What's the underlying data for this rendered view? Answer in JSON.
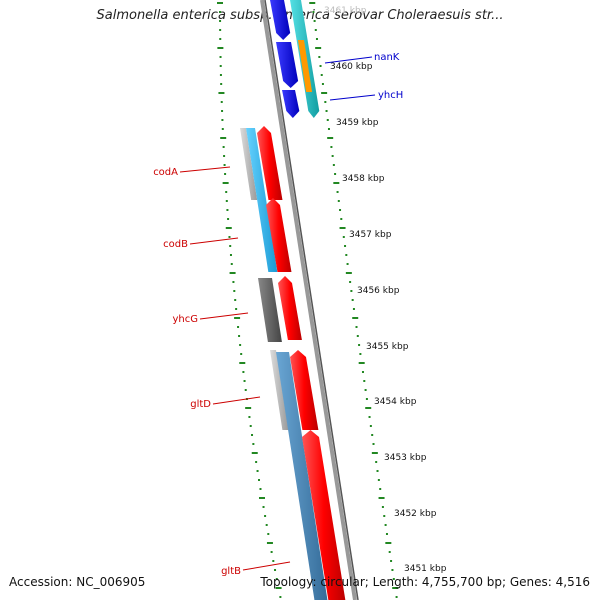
{
  "header": {
    "title": "Salmonella enterica subsp. enterica serovar Choleraesuis str..."
  },
  "footer": {
    "accession": "Accession: NC_006905",
    "topology": "Topology: circular; Length: 4,755,700 bp; Genes: 4,516"
  },
  "ticks": [
    {
      "label": "3461 kbp"
    },
    {
      "label": "3460 kbp"
    },
    {
      "label": "3459 kbp"
    },
    {
      "label": "3458 kbp"
    },
    {
      "label": "3457 kbp"
    },
    {
      "label": "3456 kbp"
    },
    {
      "label": "3455 kbp"
    },
    {
      "label": "3454 kbp"
    },
    {
      "label": "3453 kbp"
    },
    {
      "label": "3452 kbp"
    },
    {
      "label": "3451 kbp"
    }
  ],
  "genes_left": [
    {
      "name": "codA"
    },
    {
      "name": "codB"
    },
    {
      "name": "yhcG"
    },
    {
      "name": "gltD"
    },
    {
      "name": "gltB"
    }
  ],
  "genes_right": [
    {
      "name": "nanK"
    },
    {
      "name": "yhcH"
    }
  ],
  "colors": {
    "left_label": "#cc0000",
    "right_label": "#0000cc",
    "forward_gene": "#ff0000",
    "blue_gene": "#0000ee",
    "cyan_gene": "#22c8cc",
    "orange_gene": "#ff9900",
    "skyblue_gene": "#22b4ee",
    "steel_gene": "#4682b4",
    "gray_gene": "#666666",
    "backbone": "#777777",
    "gc_skew": "#228822"
  }
}
